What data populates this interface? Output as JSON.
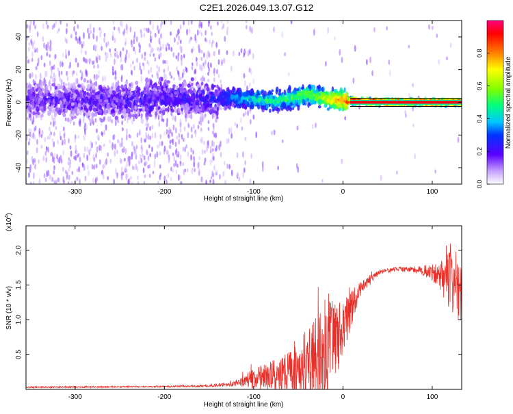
{
  "title": "C2E1.2026.049.13.07.G12",
  "chart_data": [
    {
      "type": "heatmap",
      "title": "C2E1.2026.049.13.07.G12",
      "xlabel": "Height of straight line (km)",
      "ylabel": "Frequency (Hz)",
      "xlim": [
        -355,
        133
      ],
      "ylim": [
        -50,
        50
      ],
      "xticks": [
        -300,
        -200,
        -100,
        0,
        100
      ],
      "yticks": [
        -40,
        -20,
        0,
        20,
        40
      ],
      "colorbar": {
        "label": "Normalized spectral amplitude",
        "range": [
          0,
          1
        ],
        "ticks": [
          0.0,
          0.2,
          0.4,
          0.6,
          0.8
        ]
      },
      "ridge_center_hz": [
        {
          "x": -350,
          "y": 2
        },
        {
          "x": -300,
          "y": 1
        },
        {
          "x": -250,
          "y": 1
        },
        {
          "x": -200,
          "y": 3
        },
        {
          "x": -150,
          "y": 2
        },
        {
          "x": -120,
          "y": 3
        },
        {
          "x": -100,
          "y": 2
        },
        {
          "x": -80,
          "y": 1
        },
        {
          "x": -60,
          "y": 2
        },
        {
          "x": -40,
          "y": 5
        },
        {
          "x": -20,
          "y": 2
        },
        {
          "x": 0,
          "y": 1
        },
        {
          "x": 50,
          "y": 0
        },
        {
          "x": 130,
          "y": 0
        }
      ],
      "ridge_amplitude": [
        {
          "x": -350,
          "v": 0.15
        },
        {
          "x": -300,
          "v": 0.15
        },
        {
          "x": -250,
          "v": 0.18
        },
        {
          "x": -200,
          "v": 0.2
        },
        {
          "x": -150,
          "v": 0.2
        },
        {
          "x": -130,
          "v": 0.3
        },
        {
          "x": -100,
          "v": 0.45
        },
        {
          "x": -60,
          "v": 0.5
        },
        {
          "x": -30,
          "v": 0.6
        },
        {
          "x": -10,
          "v": 0.75
        },
        {
          "x": 10,
          "v": 0.95
        },
        {
          "x": 130,
          "v": 0.95
        }
      ]
    },
    {
      "type": "line",
      "xlabel": "Height of straight line (km)",
      "ylabel": "SNR (10 * v/v)",
      "y_multiplier": "(x10",
      "y_multiplier_exp": "4",
      "y_multiplier_close": ")",
      "xlim": [
        -355,
        133
      ],
      "ylim": [
        0,
        2.35
      ],
      "xticks": [
        -300,
        -200,
        -100,
        0,
        100
      ],
      "yticks": [
        0.5,
        1.0,
        1.5,
        2.0
      ],
      "line_color": "#e8302a",
      "envelope": [
        {
          "x": -355,
          "base": 0.03,
          "spread": 0.01
        },
        {
          "x": -200,
          "base": 0.04,
          "spread": 0.01
        },
        {
          "x": -150,
          "base": 0.05,
          "spread": 0.015
        },
        {
          "x": -120,
          "base": 0.08,
          "spread": 0.04
        },
        {
          "x": -100,
          "base": 0.15,
          "spread": 0.15
        },
        {
          "x": -60,
          "base": 0.25,
          "spread": 0.3
        },
        {
          "x": -40,
          "base": 0.35,
          "spread": 0.55
        },
        {
          "x": -20,
          "base": 0.5,
          "spread": 0.8
        },
        {
          "x": 0,
          "base": 0.9,
          "spread": 0.4
        },
        {
          "x": 20,
          "base": 1.45,
          "spread": 0.1
        },
        {
          "x": 40,
          "base": 1.68,
          "spread": 0.04
        },
        {
          "x": 60,
          "base": 1.73,
          "spread": 0.03
        },
        {
          "x": 80,
          "base": 1.72,
          "spread": 0.05
        },
        {
          "x": 100,
          "base": 1.68,
          "spread": 0.12
        },
        {
          "x": 115,
          "base": 1.6,
          "spread": 0.35
        },
        {
          "x": 133,
          "base": 1.5,
          "spread": 0.6
        }
      ]
    }
  ]
}
